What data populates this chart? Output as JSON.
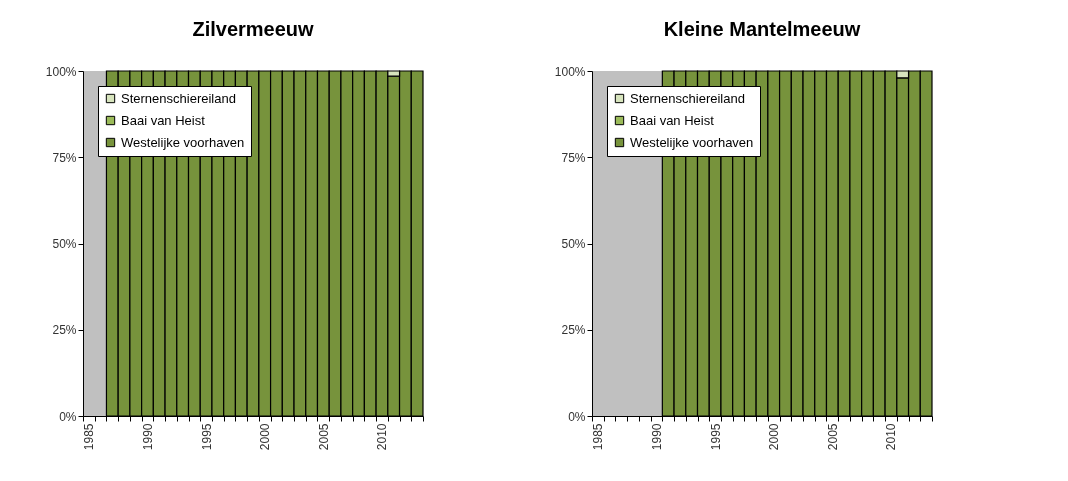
{
  "chart_data": [
    {
      "type": "bar",
      "title": "Zilvermeeuw",
      "stacked": true,
      "legend": "top left",
      "grid": false,
      "categories": [
        "1985",
        null,
        null,
        null,
        null,
        "1990",
        null,
        null,
        null,
        null,
        "1995",
        null,
        null,
        null,
        null,
        "2000",
        null,
        null,
        null,
        null,
        "2005",
        null,
        null,
        null,
        null,
        "2010",
        null,
        null,
        null
      ],
      "ylim": [
        0,
        100
      ],
      "yticks": [
        {
          "value": 0,
          "label": "0%"
        },
        {
          "value": 25,
          "label": "25%"
        },
        {
          "value": 50,
          "label": "50%"
        },
        {
          "value": 75,
          "label": "75%"
        },
        {
          "value": 100,
          "label": "100%"
        }
      ],
      "series": [
        {
          "name": "Westelijke voorhaven",
          "color": "#77933c",
          "values": [
            null,
            null,
            100,
            100,
            100,
            100,
            100,
            100,
            100,
            100,
            100,
            100,
            100,
            100,
            100,
            100,
            100,
            100,
            100,
            100,
            100,
            100,
            100,
            100,
            100,
            100,
            98.5,
            100,
            100
          ]
        },
        {
          "name": "Baai van Heist",
          "color": "#9bbb59",
          "values": [
            null,
            null,
            0,
            0,
            0,
            0,
            0,
            0,
            0,
            0,
            0,
            0,
            0,
            0,
            0,
            0,
            0,
            0,
            0,
            0,
            0,
            0,
            0,
            0,
            0,
            0,
            0,
            0,
            0
          ]
        },
        {
          "name": "Sternenschiereiland",
          "color": "#d7e4bd",
          "values": [
            null,
            null,
            0,
            0,
            0,
            0,
            0,
            0,
            0,
            0,
            0,
            0,
            0,
            0,
            0,
            0,
            0,
            0,
            0,
            0,
            0,
            0,
            0,
            0,
            0,
            0,
            1.5,
            0,
            0
          ]
        }
      ]
    },
    {
      "type": "bar",
      "title": "Kleine Mantelmeeuw",
      "stacked": true,
      "legend": "top left",
      "grid": false,
      "categories": [
        "1985",
        null,
        null,
        null,
        null,
        "1990",
        null,
        null,
        null,
        null,
        "1995",
        null,
        null,
        null,
        null,
        "2000",
        null,
        null,
        null,
        null,
        "2005",
        null,
        null,
        null,
        null,
        "2010",
        null,
        null,
        null
      ],
      "ylim": [
        0,
        100
      ],
      "yticks": [
        {
          "value": 0,
          "label": "0%"
        },
        {
          "value": 25,
          "label": "25%"
        },
        {
          "value": 50,
          "label": "50%"
        },
        {
          "value": 75,
          "label": "75%"
        },
        {
          "value": 100,
          "label": "100%"
        }
      ],
      "series": [
        {
          "name": "Westelijke voorhaven",
          "color": "#77933c",
          "values": [
            null,
            null,
            null,
            null,
            null,
            null,
            100,
            100,
            100,
            100,
            100,
            100,
            100,
            100,
            100,
            100,
            100,
            100,
            100,
            100,
            100,
            100,
            100,
            100,
            100,
            100,
            98,
            100,
            100
          ]
        },
        {
          "name": "Baai van Heist",
          "color": "#9bbb59",
          "values": [
            null,
            null,
            null,
            null,
            null,
            null,
            0,
            0,
            0,
            0,
            0,
            0,
            0,
            0,
            0,
            0,
            0,
            0,
            0,
            0,
            0,
            0,
            0,
            0,
            0,
            0,
            0,
            0,
            0
          ]
        },
        {
          "name": "Sternenschiereiland",
          "color": "#d7e4bd",
          "values": [
            null,
            null,
            null,
            null,
            null,
            null,
            0,
            0,
            0,
            0,
            0,
            0,
            0,
            0,
            0,
            0,
            0,
            0,
            0,
            0,
            0,
            0,
            0,
            0,
            0,
            0,
            2,
            0,
            0
          ]
        }
      ]
    }
  ]
}
